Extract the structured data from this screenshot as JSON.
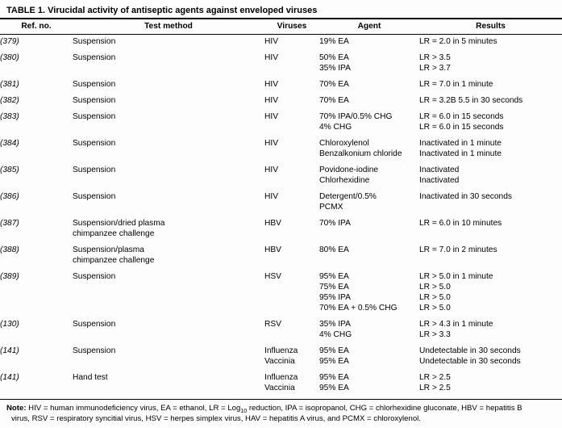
{
  "title": "TABLE 1. Virucidal activity of antiseptic agents against enveloped viruses",
  "table": {
    "columns": [
      "Ref. no.",
      "Test method",
      "Viruses",
      "Agent",
      "Results"
    ],
    "rows": [
      {
        "ref": "(379)",
        "test_method": [
          "Suspension"
        ],
        "viruses": [
          "HIV"
        ],
        "agent": [
          "19% EA"
        ],
        "results": [
          "LR = 2.0 in 5 minutes"
        ]
      },
      {
        "ref": "(380)",
        "test_method": [
          "Suspension"
        ],
        "viruses": [
          "HIV"
        ],
        "agent": [
          "50% EA",
          "35% IPA"
        ],
        "results": [
          "LR > 3.5",
          "LR > 3.7"
        ]
      },
      {
        "ref": "(381)",
        "test_method": [
          "Suspension"
        ],
        "viruses": [
          "HIV"
        ],
        "agent": [
          "70% EA"
        ],
        "results": [
          "LR = 7.0 in 1 minute"
        ]
      },
      {
        "ref": "(382)",
        "test_method": [
          "Suspension"
        ],
        "viruses": [
          "HIV"
        ],
        "agent": [
          "70% EA"
        ],
        "results": [
          "LR = 3.2B 5.5 in 30 seconds"
        ]
      },
      {
        "ref": "(383)",
        "test_method": [
          "Suspension"
        ],
        "viruses": [
          "HIV"
        ],
        "agent": [
          "70% IPA/0.5% CHG",
          "4% CHG"
        ],
        "results": [
          "LR = 6.0 in 15 seconds",
          "LR = 6.0 in 15 seconds"
        ]
      },
      {
        "ref": "(384)",
        "test_method": [
          "Suspension"
        ],
        "viruses": [
          "HIV"
        ],
        "agent": [
          "Chloroxylenol",
          "Benzalkonium chloride"
        ],
        "results": [
          "Inactivated in 1 minute",
          "Inactivated in 1 minute"
        ]
      },
      {
        "ref": "(385)",
        "test_method": [
          "Suspension"
        ],
        "viruses": [
          "HIV"
        ],
        "agent": [
          "Povidone-iodine",
          "Chlorhexidine"
        ],
        "results": [
          "Inactivated",
          "Inactivated"
        ]
      },
      {
        "ref": "(386)",
        "test_method": [
          "Suspension"
        ],
        "viruses": [
          "HIV"
        ],
        "agent": [
          "Detergent/0.5%",
          "PCMX"
        ],
        "results": [
          "Inactivated in 30 seconds"
        ]
      },
      {
        "ref": "(387)",
        "test_method": [
          "Suspension/dried plasma",
          "chimpanzee challenge"
        ],
        "viruses": [
          "HBV"
        ],
        "agent": [
          "70% IPA"
        ],
        "results": [
          "LR = 6.0 in 10 minutes"
        ]
      },
      {
        "ref": "(388)",
        "test_method": [
          "Suspension/plasma",
          "chimpanzee challenge"
        ],
        "viruses": [
          "HBV"
        ],
        "agent": [
          "80% EA"
        ],
        "results": [
          "LR = 7.0 in 2 minutes"
        ]
      },
      {
        "ref": "(389)",
        "test_method": [
          "Suspension"
        ],
        "viruses": [
          "HSV"
        ],
        "agent": [
          "95% EA",
          "75% EA",
          "95% IPA",
          "70% EA + 0.5% CHG"
        ],
        "results": [
          "LR > 5.0 in 1 minute",
          "LR > 5.0",
          "LR > 5.0",
          "LR > 5.0"
        ]
      },
      {
        "ref": "(130)",
        "test_method": [
          "Suspension"
        ],
        "viruses": [
          "RSV"
        ],
        "agent": [
          "35% IPA",
          "4% CHG"
        ],
        "results": [
          "LR > 4.3 in 1 minute",
          "LR > 3.3"
        ]
      },
      {
        "ref": "(141)",
        "test_method": [
          "Suspension"
        ],
        "viruses": [
          "Influenza",
          "Vaccinia"
        ],
        "agent": [
          "95% EA",
          "95% EA"
        ],
        "results": [
          "Undetectable in 30 seconds",
          "Undetectable in 30 seconds"
        ]
      },
      {
        "ref": "(141)",
        "test_method": [
          "Hand test"
        ],
        "viruses": [
          "Influenza",
          "Vaccinia"
        ],
        "agent": [
          "95% EA",
          "95% EA"
        ],
        "results": [
          "LR > 2.5",
          "LR > 2.5"
        ]
      }
    ]
  },
  "note": {
    "label": "Note:",
    "seg1": " HIV = human immunodeficiency virus, EA = ethanol, LR = Log",
    "sub": "10",
    "seg2": " reduction, IPA = isopropanol, CHG = chlorhexidine gluconate, HBV = hepatitis B",
    "line2": "virus, RSV = respiratory syncitial virus, HSV = herpes simplex virus, HAV = hepatitis A virus, and PCMX = chloroxylenol."
  },
  "colors": {
    "text": "#000000",
    "background": "#fdfdfd",
    "rule": "#000000"
  }
}
